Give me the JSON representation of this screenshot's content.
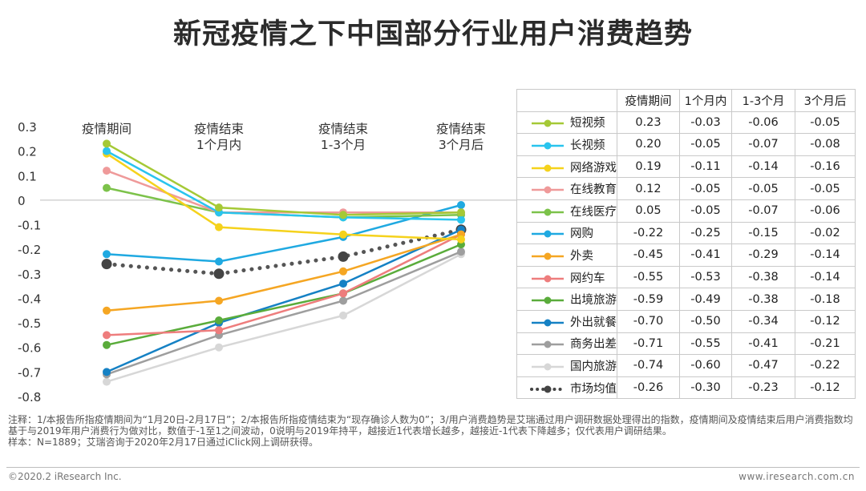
{
  "page_title": "新冠疫情之下中国部分行业用户消费趋势",
  "chart_data": {
    "type": "line",
    "title": "新冠疫情之下中国部分行业用户消费趋势",
    "categories": [
      "疫情期间",
      "疫情结束 1个月内",
      "疫情结束 1-3个月",
      "疫情结束 3个月后"
    ],
    "category_label_lines": [
      [
        "疫情期间"
      ],
      [
        "疫情结束",
        "1个月内"
      ],
      [
        "疫情结束",
        "1-3个月"
      ],
      [
        "疫情结束",
        "3个月后"
      ]
    ],
    "ylim": [
      -0.8,
      0.3
    ],
    "yticks": [
      "0.3",
      "0.2",
      "0.1",
      "0",
      "-0.1",
      "-0.2",
      "-0.3",
      "-0.4",
      "-0.5",
      "-0.6",
      "-0.7",
      "-0.8"
    ],
    "ytick_values": [
      0.3,
      0.2,
      0.1,
      0,
      -0.1,
      -0.2,
      -0.3,
      -0.4,
      -0.5,
      -0.6,
      -0.7,
      -0.8
    ],
    "zero_line": true,
    "series": [
      {
        "name": "短视频",
        "values": [
          0.23,
          -0.03,
          -0.06,
          -0.05
        ],
        "color": "#a5c936",
        "dotted": false
      },
      {
        "name": "长视频",
        "values": [
          0.2,
          -0.05,
          -0.07,
          -0.08
        ],
        "color": "#29c4ee",
        "dotted": false
      },
      {
        "name": "网络游戏",
        "values": [
          0.19,
          -0.11,
          -0.14,
          -0.16
        ],
        "color": "#f5d21c",
        "dotted": false
      },
      {
        "name": "在线教育",
        "values": [
          0.12,
          -0.05,
          -0.05,
          -0.05
        ],
        "color": "#ef9a9a",
        "dotted": false
      },
      {
        "name": "在线医疗",
        "values": [
          0.05,
          -0.05,
          -0.07,
          -0.06
        ],
        "color": "#7cc24a",
        "dotted": false
      },
      {
        "name": "网购",
        "values": [
          -0.22,
          -0.25,
          -0.15,
          -0.02
        ],
        "color": "#1fa9e1",
        "dotted": false
      },
      {
        "name": "外卖",
        "values": [
          -0.45,
          -0.41,
          -0.29,
          -0.14
        ],
        "color": "#f5a623",
        "dotted": false
      },
      {
        "name": "网约车",
        "values": [
          -0.55,
          -0.53,
          -0.38,
          -0.14
        ],
        "color": "#ee7d7d",
        "dotted": false
      },
      {
        "name": "出境旅游",
        "values": [
          -0.59,
          -0.49,
          -0.38,
          -0.18
        ],
        "color": "#5aac3b",
        "dotted": false
      },
      {
        "name": "外出就餐",
        "values": [
          -0.7,
          -0.5,
          -0.34,
          -0.12
        ],
        "color": "#1581c4",
        "dotted": false
      },
      {
        "name": "商务出差",
        "values": [
          -0.71,
          -0.55,
          -0.41,
          -0.21
        ],
        "color": "#9e9e9e",
        "dotted": false
      },
      {
        "name": "国内旅游",
        "values": [
          -0.74,
          -0.6,
          -0.47,
          -0.22
        ],
        "color": "#d7d7d7",
        "dotted": false
      },
      {
        "name": "市场均值",
        "values": [
          -0.26,
          -0.3,
          -0.23,
          -0.12
        ],
        "color": "#444444",
        "dotted": true
      }
    ]
  },
  "table": {
    "headers": [
      "疫情期间",
      "1个月内",
      "1-3个月",
      "3个月后"
    ],
    "rows": [
      {
        "name": "短视频",
        "values": [
          "0.23",
          "-0.03",
          "-0.06",
          "-0.05"
        ]
      },
      {
        "name": "长视频",
        "values": [
          "0.20",
          "-0.05",
          "-0.07",
          "-0.08"
        ]
      },
      {
        "name": "网络游戏",
        "values": [
          "0.19",
          "-0.11",
          "-0.14",
          "-0.16"
        ]
      },
      {
        "name": "在线教育",
        "values": [
          "0.12",
          "-0.05",
          "-0.05",
          "-0.05"
        ]
      },
      {
        "name": "在线医疗",
        "values": [
          "0.05",
          "-0.05",
          "-0.07",
          "-0.06"
        ]
      },
      {
        "name": "网购",
        "values": [
          "-0.22",
          "-0.25",
          "-0.15",
          "-0.02"
        ]
      },
      {
        "name": "外卖",
        "values": [
          "-0.45",
          "-0.41",
          "-0.29",
          "-0.14"
        ]
      },
      {
        "name": "网约车",
        "values": [
          "-0.55",
          "-0.53",
          "-0.38",
          "-0.14"
        ]
      },
      {
        "name": "出境旅游",
        "values": [
          "-0.59",
          "-0.49",
          "-0.38",
          "-0.18"
        ]
      },
      {
        "name": "外出就餐",
        "values": [
          "-0.70",
          "-0.50",
          "-0.34",
          "-0.12"
        ]
      },
      {
        "name": "商务出差",
        "values": [
          "-0.71",
          "-0.55",
          "-0.41",
          "-0.21"
        ]
      },
      {
        "name": "国内旅游",
        "values": [
          "-0.74",
          "-0.60",
          "-0.47",
          "-0.22"
        ]
      },
      {
        "name": "市场均值",
        "values": [
          "-0.26",
          "-0.30",
          "-0.23",
          "-0.12"
        ]
      }
    ]
  },
  "footnote": {
    "note": "注释：1/本报告所指疫情期间为“1月20日-2月17日”；2/本报告所指疫情结束为“现存确诊人数为0”；3/用户消费趋势是艾瑞通过用户调研数据处理得出的指数，疫情期间及疫情结束后用户消费指数均基于与2019年用户消费行为做对比，数值于-1至1之间波动，0说明与2019年持平，越接近1代表增长越多，越接近-1代表下降越多；仅代表用户调研结果。",
    "sample": "样本：N=1889；艾瑞咨询于2020年2月17日通过iClick网上调研获得。"
  },
  "footer": {
    "left": "©2020.2 iResearch Inc.",
    "right": "www.iresearch.com.cn"
  }
}
